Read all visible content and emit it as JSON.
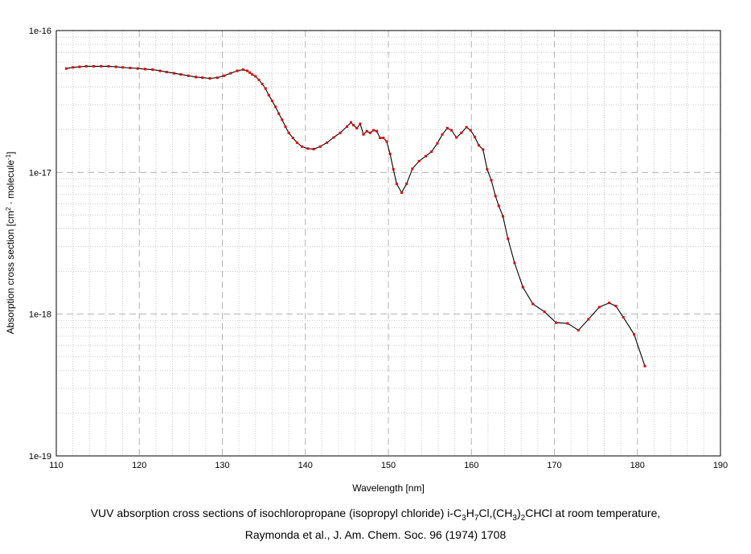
{
  "chart_data": {
    "type": "line",
    "xlabel": "Wavelength [nm]",
    "ylabel_parts": [
      "Absorption cross section [cm",
      "2",
      " · molecule",
      "-1",
      "]"
    ],
    "xlim": [
      110,
      190
    ],
    "ylim": [
      1e-19,
      1e-16
    ],
    "yscale": "log",
    "grid": true,
    "x_ticks": [
      "110",
      "120",
      "130",
      "140",
      "150",
      "160",
      "170",
      "180",
      "190"
    ],
    "y_ticks": [
      "1e-16",
      "1e-17",
      "1e-18",
      "1e-19"
    ],
    "series": [
      {
        "color": "#000000",
        "marker_color": "#e00000",
        "x": [
          111.2,
          112.0,
          112.8,
          113.6,
          114.5,
          115.4,
          116.3,
          117.2,
          118.0,
          118.9,
          119.8,
          120.7,
          121.6,
          122.5,
          123.3,
          124.2,
          125.0,
          125.9,
          126.8,
          127.6,
          128.5,
          129.4,
          130.2,
          131.0,
          131.8,
          132.5,
          133.0,
          133.3,
          133.6,
          134.0,
          134.4,
          134.8,
          135.2,
          135.6,
          136.0,
          136.4,
          136.8,
          137.2,
          137.6,
          138.0,
          138.5,
          139.0,
          139.6,
          140.3,
          141.0,
          141.8,
          142.6,
          143.4,
          144.2,
          145.0,
          145.5,
          145.8,
          146.2,
          146.6,
          147.0,
          147.4,
          147.8,
          148.2,
          148.6,
          149.0,
          149.4,
          149.8,
          150.2,
          150.6,
          151.0,
          151.6,
          152.2,
          152.9,
          153.7,
          154.5,
          155.2,
          155.9,
          156.5,
          157.1,
          157.6,
          158.2,
          158.8,
          159.4,
          159.9,
          160.4,
          160.9,
          161.4,
          161.9,
          162.4,
          162.9,
          163.3,
          163.8,
          164.4,
          165.2,
          166.2,
          167.4,
          168.8,
          170.2,
          171.6,
          172.9,
          174.1,
          175.4,
          176.6,
          177.4,
          178.3,
          179.6,
          180.9
        ],
        "y": [
          5.4e-17,
          5.5e-17,
          5.55e-17,
          5.6e-17,
          5.6e-17,
          5.6e-17,
          5.6e-17,
          5.55e-17,
          5.5e-17,
          5.45e-17,
          5.4e-17,
          5.35e-17,
          5.3e-17,
          5.2e-17,
          5.1e-17,
          5e-17,
          4.9e-17,
          4.8e-17,
          4.7e-17,
          4.65e-17,
          4.6e-17,
          4.65e-17,
          4.8e-17,
          5e-17,
          5.2e-17,
          5.3e-17,
          5.2e-17,
          5.05e-17,
          4.9e-17,
          4.75e-17,
          4.5e-17,
          4.2e-17,
          3.9e-17,
          3.5e-17,
          3.2e-17,
          2.9e-17,
          2.6e-17,
          2.35e-17,
          2.1e-17,
          1.9e-17,
          1.75e-17,
          1.62e-17,
          1.52e-17,
          1.47e-17,
          1.46e-17,
          1.52e-17,
          1.62e-17,
          1.76e-17,
          1.9e-17,
          2.1e-17,
          2.25e-17,
          2.15e-17,
          2.05e-17,
          2.2e-17,
          1.85e-17,
          1.95e-17,
          1.9e-17,
          1.98e-17,
          1.95e-17,
          1.75e-17,
          1.75e-17,
          1.65e-17,
          1.35e-17,
          1.05e-17,
          8.3e-18,
          7.2e-18,
          8.3e-18,
          1.06e-17,
          1.2e-17,
          1.3e-17,
          1.4e-17,
          1.6e-17,
          1.85e-17,
          2.05e-17,
          1.98e-17,
          1.76e-17,
          1.9e-17,
          2.08e-17,
          1.98e-17,
          1.78e-17,
          1.55e-17,
          1.45e-17,
          1.05e-17,
          8.8e-18,
          6.8e-18,
          5.8e-18,
          4.9e-18,
          3.4e-18,
          2.3e-18,
          1.55e-18,
          1.18e-18,
          1.04e-18,
          8.7e-19,
          8.6e-19,
          7.7e-19,
          9.2e-19,
          1.12e-18,
          1.2e-18,
          1.14e-18,
          9.5e-19,
          7.2e-19,
          4.3e-19
        ]
      }
    ]
  },
  "caption": {
    "line1": [
      "VUV absorption cross sections of isochloropropane (isopropyl chloride) i-C",
      "3",
      "H",
      "7",
      "Cl,(CH",
      "3",
      ")",
      "2",
      "CHCl at room temperature,"
    ],
    "line2": "Raymonda et al., J. Am. Chem. Soc. 96 (1974) 1708"
  }
}
